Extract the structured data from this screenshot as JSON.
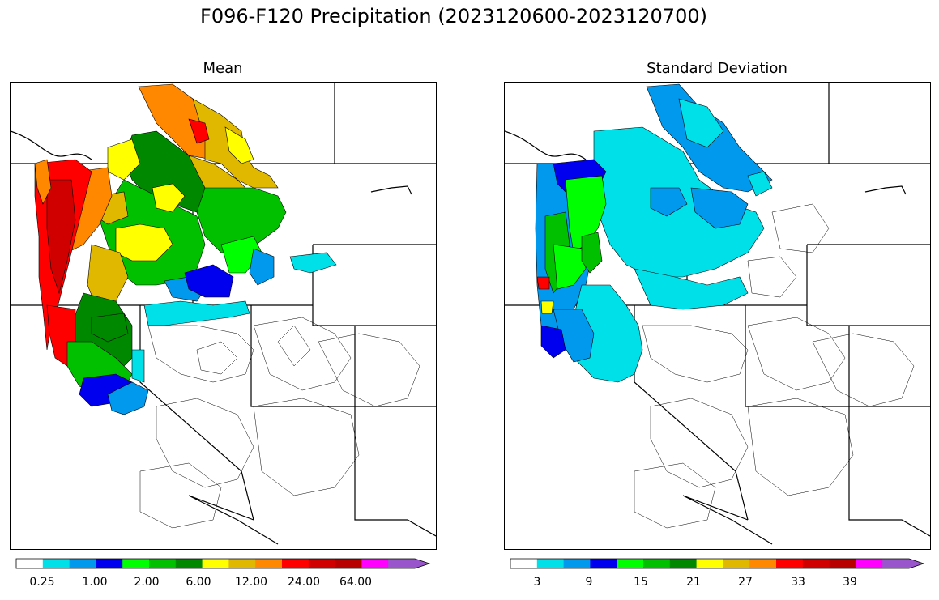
{
  "title": "F096-F120 Precipitation (2023120600-2023120700)",
  "panels": [
    {
      "id": "mean",
      "title": "Mean",
      "colorbar_ticks": [
        "0.25",
        "1.00",
        "2.00",
        "6.00",
        "12.00",
        "24.00",
        "64.00"
      ]
    },
    {
      "id": "stddev",
      "title": "Standard Deviation",
      "colorbar_ticks": [
        "3",
        "9",
        "15",
        "21",
        "27",
        "33",
        "39"
      ]
    }
  ],
  "colorbar_colors": [
    "#ffffff",
    "#00e0e8",
    "#0099ee",
    "#0000ee",
    "#00ff00",
    "#00c000",
    "#008800",
    "#ffff00",
    "#e0b800",
    "#ff8800",
    "#ff0000",
    "#d00000",
    "#b80000",
    "#ff00ff",
    "#9955cc"
  ],
  "region_colors": {
    "cyan": "#00e0e8",
    "light_blue": "#0099ee",
    "blue": "#0000ee",
    "green": "#00c000",
    "dark_green": "#008800",
    "light_green": "#00ff00",
    "yellow": "#ffff00",
    "gold": "#e0b800",
    "orange": "#ff8800",
    "red": "#ff0000",
    "dark_red": "#d00000"
  }
}
